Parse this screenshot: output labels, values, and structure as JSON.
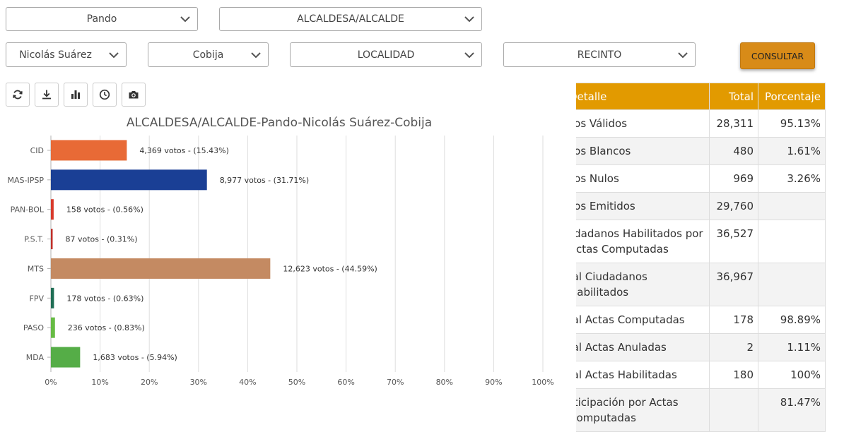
{
  "filters": {
    "department": "Pando",
    "position": "ALCALDESA/ALCALDE",
    "province": "Nicolás Suárez",
    "municipality": "Cobija",
    "locality": "LOCALIDAD",
    "precinct": "RECINTO"
  },
  "consult_label": "CONSULTAR",
  "toolbar": {
    "icons": [
      "refresh-icon",
      "download-icon",
      "bar-chart-icon",
      "clock-icon",
      "camera-icon"
    ]
  },
  "colors": {
    "header_orange": "#e29a00",
    "button_orange": "#d88b18"
  },
  "chart_data": {
    "type": "bar",
    "orientation": "horizontal",
    "title": "ALCALDESA/ALCALDE-Pando-Nicolás Suárez-Cobija",
    "categories": [
      "CID",
      "MAS-IPSP",
      "PAN-BOL",
      "P.S.T.",
      "MTS",
      "FPV",
      "PASO",
      "MDA"
    ],
    "values": [
      15.43,
      31.71,
      0.56,
      0.31,
      44.59,
      0.63,
      0.83,
      5.94
    ],
    "data_labels": [
      "4,369 votos - (15.43%)",
      "8,977 votos - (31.71%)",
      "158 votos - (0.56%)",
      "87 votos - (0.31%)",
      "12,623 votos - (44.59%)",
      "178 votos - (0.63%)",
      "236 votos - (0.83%)",
      "1,683 votos - (5.94%)"
    ],
    "colors": [
      "#e86a36",
      "#1a3f95",
      "#d83a2c",
      "#c0302a",
      "#c48a62",
      "#1f6e55",
      "#66bb44",
      "#55ad47"
    ],
    "xlim": [
      0,
      100
    ],
    "x_ticks": [
      "0%",
      "10%",
      "20%",
      "30%",
      "40%",
      "50%",
      "60%",
      "70%",
      "80%",
      "90%",
      "100%"
    ],
    "grid": true
  },
  "table": {
    "headers": [
      "Detalle",
      "Total",
      "Porcentaje"
    ],
    "rows": [
      {
        "label": "Votos Válidos",
        "total": "28,311",
        "pct": "95.13%"
      },
      {
        "label": "Votos Blancos",
        "total": "480",
        "pct": "1.61%"
      },
      {
        "label": "Votos Nulos",
        "total": "969",
        "pct": "3.26%"
      },
      {
        "label": "Votos Emitidos",
        "total": "29,760",
        "pct": ""
      },
      {
        "label": "Ciudadanos Habilitados por Actas Computadas",
        "total": "36,527",
        "pct": ""
      },
      {
        "label": "Total Ciudadanos Habilitados",
        "total": "36,967",
        "pct": ""
      },
      {
        "label": "Total Actas Computadas",
        "total": "178",
        "pct": "98.89%"
      },
      {
        "label": "Total Actas Anuladas",
        "total": "2",
        "pct": "1.11%"
      },
      {
        "label": "Total Actas Habilitadas",
        "total": "180",
        "pct": "100%"
      },
      {
        "label": "Participación por Actas Computadas",
        "total": "",
        "pct": "81.47%"
      }
    ]
  }
}
